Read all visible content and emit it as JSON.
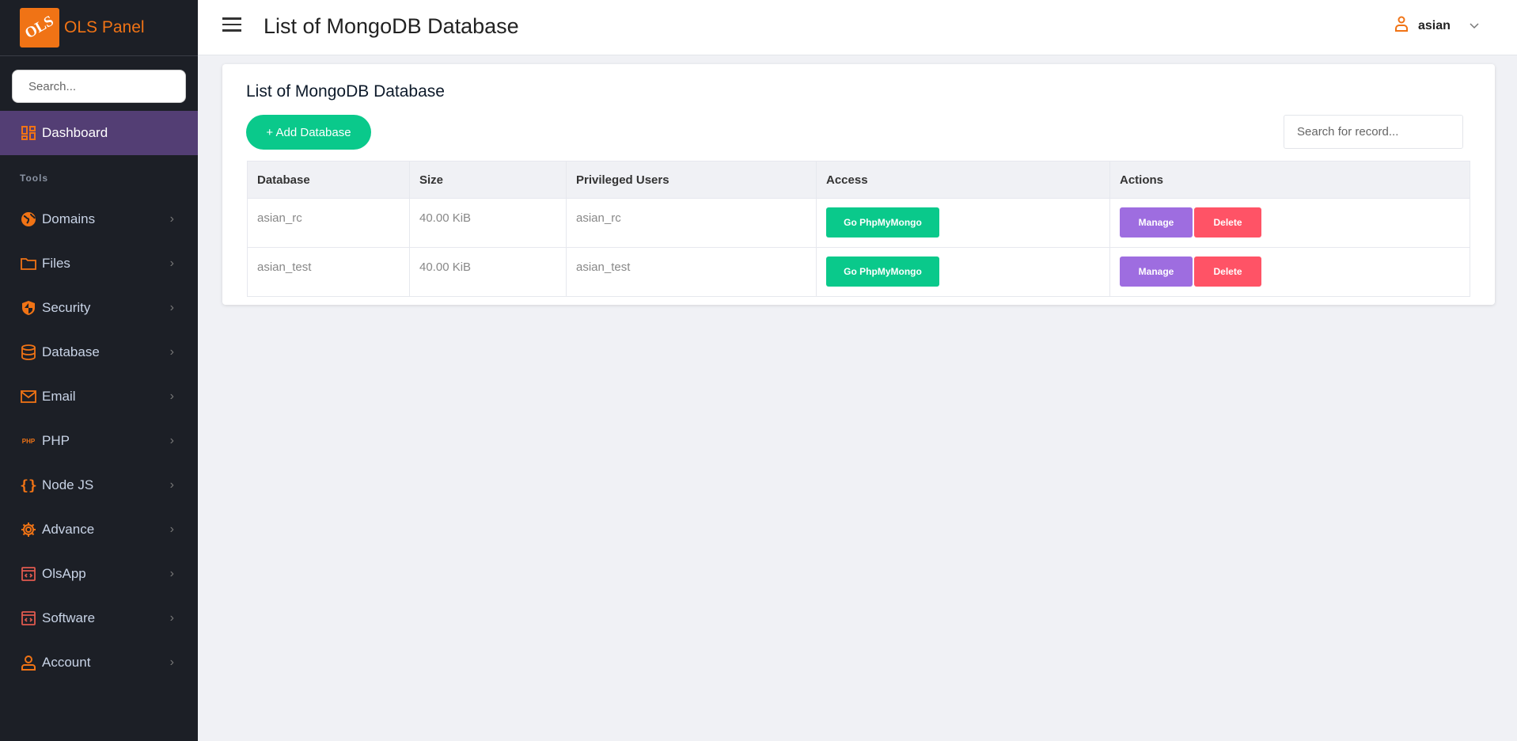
{
  "brand": {
    "logo_text": "OLS",
    "name": "OLS Panel",
    "accent": "#f07315"
  },
  "sidebar": {
    "search_placeholder": "Search...",
    "dashboard": "Dashboard",
    "section": "Tools",
    "items": [
      {
        "label": "Domains",
        "icon": "globe-icon"
      },
      {
        "label": "Files",
        "icon": "folder-icon"
      },
      {
        "label": "Security",
        "icon": "shield-icon"
      },
      {
        "label": "Database",
        "icon": "database-icon"
      },
      {
        "label": "Email",
        "icon": "mail-icon"
      },
      {
        "label": "PHP",
        "icon": "php-icon"
      },
      {
        "label": "Node JS",
        "icon": "braces-icon"
      },
      {
        "label": "Advance",
        "icon": "gear-icon"
      },
      {
        "label": "OlsApp",
        "icon": "code-window-icon"
      },
      {
        "label": "Software",
        "icon": "code-window-icon"
      },
      {
        "label": "Account",
        "icon": "user-icon"
      }
    ]
  },
  "header": {
    "title": "List of MongoDB Database",
    "user": "asian"
  },
  "main": {
    "title": "List of MongoDB Database",
    "add_button": "+ Add Database",
    "search_placeholder": "Search for record...",
    "columns": [
      "Database",
      "Size",
      "Privileged Users",
      "Access",
      "Actions"
    ],
    "rows": [
      {
        "database": "asian_rc",
        "size": "40.00 KiB",
        "users": "asian_rc",
        "access": "Go PhpMyMongo",
        "manage": "Manage",
        "delete": "Delete"
      },
      {
        "database": "asian_test",
        "size": "40.00 KiB",
        "users": "asian_test",
        "access": "Go PhpMyMongo",
        "manage": "Manage",
        "delete": "Delete"
      }
    ]
  }
}
